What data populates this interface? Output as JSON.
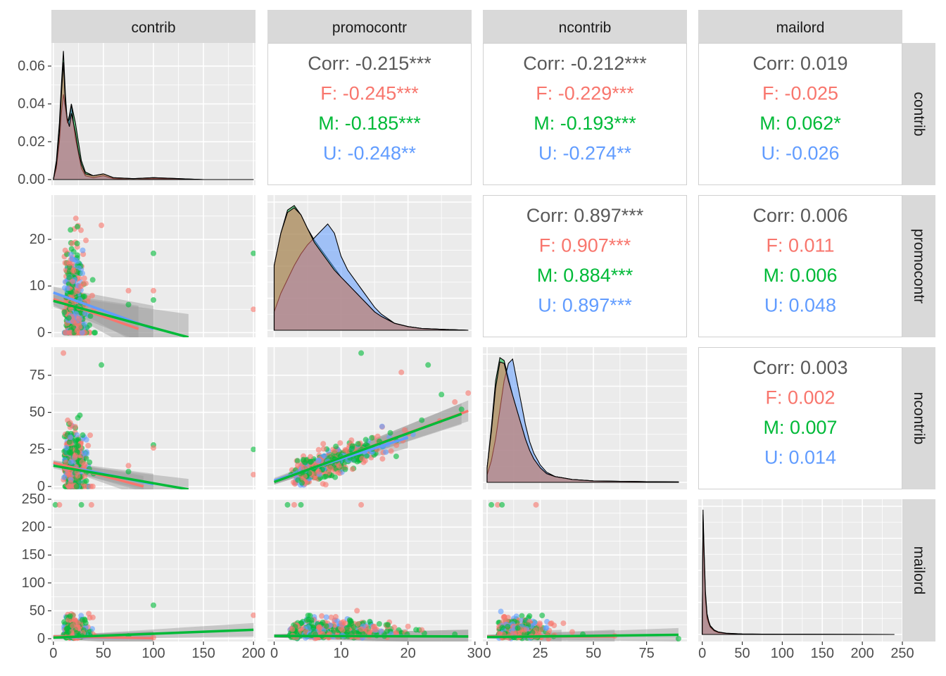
{
  "chart_data": {
    "type": "scatter",
    "variables": [
      "contrib",
      "promocontr",
      "ncontrib",
      "mailord"
    ],
    "groups": [
      {
        "key": "F",
        "color": "#F8766D"
      },
      {
        "key": "M",
        "color": "#00BA38"
      },
      {
        "key": "U",
        "color": "#619CFF"
      }
    ],
    "overall_color": "#595959",
    "panel_background": "#EBEBEB",
    "strip_background": "#D9D9D9",
    "axes": {
      "contrib": {
        "lim": [
          -2,
          202
        ],
        "ticks": [
          0,
          50,
          100,
          150,
          200
        ]
      },
      "promocontr": {
        "lim": [
          -1,
          29.5
        ],
        "ticks": [
          0,
          10,
          20,
          30
        ]
      },
      "ncontrib": {
        "lim": [
          -2,
          94
        ],
        "ticks": [
          0,
          25,
          50,
          75
        ]
      },
      "mailord": {
        "lim": [
          -5,
          250
        ],
        "ticks": [
          0,
          50,
          100,
          150,
          200,
          250
        ]
      }
    },
    "density_ylim": [
      0,
      0.07
    ],
    "density_yticks": [
      "0.00",
      "0.02",
      "0.04",
      "0.06"
    ],
    "correlations": [
      {
        "row": "contrib",
        "col": "promocontr",
        "lines": [
          "Corr: -0.215***",
          "F: -0.245***",
          "M: -0.185***",
          "U: -0.248**"
        ]
      },
      {
        "row": "contrib",
        "col": "ncontrib",
        "lines": [
          "Corr: -0.212***",
          "F: -0.229***",
          "M: -0.193***",
          "U: -0.274**"
        ]
      },
      {
        "row": "contrib",
        "col": "mailord",
        "lines": [
          "Corr: 0.019",
          "F: -0.025",
          "M: 0.062*",
          "U: -0.026"
        ]
      },
      {
        "row": "promocontr",
        "col": "ncontrib",
        "lines": [
          "Corr: 0.897***",
          "F: 0.907***",
          "M: 0.884***",
          "U: 0.897***"
        ]
      },
      {
        "row": "promocontr",
        "col": "mailord",
        "lines": [
          "Corr: 0.006",
          "F: 0.011",
          "M: 0.006",
          "U: 0.048"
        ]
      },
      {
        "row": "ncontrib",
        "col": "mailord",
        "lines": [
          "Corr: 0.003",
          "F: 0.002",
          "M: 0.007",
          "U: 0.014"
        ]
      }
    ],
    "densities": {
      "contrib": {
        "x": [
          0,
          3,
          6,
          8,
          10,
          12,
          14,
          16,
          18,
          20,
          22,
          25,
          28,
          32,
          40,
          50,
          60,
          80,
          100,
          150,
          200
        ],
        "F": [
          0,
          0.008,
          0.025,
          0.045,
          0.062,
          0.04,
          0.032,
          0.028,
          0.035,
          0.03,
          0.025,
          0.015,
          0.008,
          0.003,
          0.002,
          0.003,
          0.001,
          0.0005,
          0.001,
          0,
          0
        ],
        "M": [
          0,
          0.01,
          0.03,
          0.05,
          0.068,
          0.045,
          0.03,
          0.034,
          0.04,
          0.035,
          0.03,
          0.02,
          0.01,
          0.004,
          0.002,
          0.003,
          0.001,
          0.0005,
          0.001,
          0,
          0
        ],
        "U": [
          0,
          0.006,
          0.02,
          0.035,
          0.045,
          0.038,
          0.03,
          0.032,
          0.04,
          0.03,
          0.022,
          0.014,
          0.006,
          0.002,
          0.001,
          0.002,
          0.0005,
          0,
          0.0005,
          0,
          0
        ]
      },
      "promocontr": {
        "x": [
          0,
          1,
          2,
          3,
          4,
          5,
          6,
          7,
          8,
          9,
          10,
          11,
          12,
          13,
          14,
          15,
          16,
          18,
          20,
          22,
          25,
          29
        ],
        "F": [
          0.14,
          0.21,
          0.255,
          0.265,
          0.25,
          0.22,
          0.19,
          0.17,
          0.15,
          0.13,
          0.115,
          0.1,
          0.085,
          0.07,
          0.055,
          0.04,
          0.03,
          0.015,
          0.008,
          0.004,
          0.002,
          0
        ],
        "M": [
          0.14,
          0.21,
          0.26,
          0.27,
          0.25,
          0.22,
          0.195,
          0.175,
          0.155,
          0.135,
          0.115,
          0.1,
          0.085,
          0.07,
          0.055,
          0.04,
          0.03,
          0.015,
          0.008,
          0.004,
          0.002,
          0
        ],
        "U": [
          0.04,
          0.08,
          0.11,
          0.14,
          0.165,
          0.185,
          0.2,
          0.215,
          0.23,
          0.21,
          0.16,
          0.13,
          0.11,
          0.09,
          0.07,
          0.05,
          0.035,
          0.015,
          0.008,
          0.004,
          0.002,
          0
        ]
      },
      "ncontrib": {
        "x": [
          0,
          2,
          4,
          6,
          8,
          10,
          12,
          14,
          16,
          18,
          20,
          22,
          25,
          28,
          32,
          36,
          40,
          50,
          60,
          75,
          90
        ],
        "F": [
          0.01,
          0.035,
          0.065,
          0.083,
          0.082,
          0.07,
          0.06,
          0.05,
          0.04,
          0.03,
          0.022,
          0.016,
          0.01,
          0.006,
          0.004,
          0.003,
          0.002,
          0.001,
          0.0008,
          0.0005,
          0.0003
        ],
        "M": [
          0.01,
          0.038,
          0.07,
          0.086,
          0.084,
          0.072,
          0.06,
          0.05,
          0.04,
          0.03,
          0.022,
          0.016,
          0.01,
          0.006,
          0.004,
          0.003,
          0.002,
          0.001,
          0.0008,
          0.0005,
          0.0003
        ],
        "U": [
          0.005,
          0.015,
          0.03,
          0.05,
          0.07,
          0.082,
          0.085,
          0.07,
          0.055,
          0.04,
          0.028,
          0.02,
          0.012,
          0.007,
          0.004,
          0.003,
          0.002,
          0.001,
          0.0008,
          0.0005,
          0.0003
        ]
      },
      "mailord": {
        "x": [
          0,
          1,
          2,
          4,
          6,
          8,
          10,
          15,
          20,
          30,
          50,
          100,
          240
        ],
        "F": [
          0.05,
          0.75,
          0.55,
          0.25,
          0.12,
          0.08,
          0.05,
          0.025,
          0.015,
          0.007,
          0.003,
          0.001,
          0
        ],
        "M": [
          0.05,
          0.78,
          0.58,
          0.27,
          0.13,
          0.085,
          0.055,
          0.028,
          0.016,
          0.008,
          0.003,
          0.001,
          0
        ],
        "U": [
          0.05,
          0.7,
          0.5,
          0.22,
          0.1,
          0.07,
          0.045,
          0.022,
          0.012,
          0.006,
          0.002,
          0.001,
          0
        ]
      }
    },
    "smooth_lines": [
      {
        "x": "contrib",
        "y": "promocontr",
        "F": [
          [
            0,
            7.2
          ],
          [
            85,
            0.8
          ]
        ],
        "M": [
          [
            0,
            6.8
          ],
          [
            135,
            -1
          ]
        ],
        "U": [
          [
            0,
            8.6
          ],
          [
            100,
            0.8
          ]
        ]
      },
      {
        "x": "contrib",
        "y": "ncontrib",
        "F": [
          [
            0,
            16
          ],
          [
            90,
            0
          ]
        ],
        "M": [
          [
            0,
            14
          ],
          [
            135,
            -2
          ]
        ],
        "U": [
          [
            0,
            15.5
          ],
          [
            100,
            1.5
          ]
        ]
      },
      {
        "x": "contrib",
        "y": "mailord",
        "F": [
          [
            0,
            4
          ],
          [
            100,
            1
          ]
        ],
        "M": [
          [
            0,
            2
          ],
          [
            200,
            16
          ]
        ],
        "U": [
          [
            0,
            3
          ],
          [
            100,
            1
          ]
        ]
      },
      {
        "x": "promocontr",
        "y": "ncontrib",
        "F": [
          [
            0,
            3
          ],
          [
            29,
            51
          ]
        ],
        "M": [
          [
            0,
            3
          ],
          [
            28,
            49
          ]
        ],
        "U": [
          [
            0,
            4
          ],
          [
            20,
            33
          ]
        ]
      },
      {
        "x": "promocontr",
        "y": "mailord",
        "F": [
          [
            0,
            5
          ],
          [
            29,
            4
          ]
        ],
        "M": [
          [
            0,
            5
          ],
          [
            29,
            4
          ]
        ],
        "U": [
          [
            0,
            5
          ],
          [
            20,
            5
          ]
        ]
      },
      {
        "x": "ncontrib",
        "y": "mailord",
        "F": [
          [
            0,
            4
          ],
          [
            60,
            4
          ]
        ],
        "M": [
          [
            0,
            3
          ],
          [
            90,
            7
          ]
        ],
        "U": [
          [
            0,
            4
          ],
          [
            35,
            4
          ]
        ]
      }
    ],
    "notable_points": {
      "contrib_promocontr": [
        [
          200,
          17
        ],
        [
          200,
          5
        ],
        [
          100,
          17
        ],
        [
          100,
          9
        ],
        [
          100,
          7
        ],
        [
          48,
          23
        ],
        [
          75,
          6
        ],
        [
          75,
          9
        ]
      ],
      "contrib_ncontrib": [
        [
          200,
          25
        ],
        [
          200,
          8
        ],
        [
          48,
          82
        ],
        [
          10,
          90
        ],
        [
          100,
          28
        ],
        [
          100,
          26
        ],
        [
          75,
          10
        ],
        [
          75,
          14
        ]
      ],
      "contrib_mailord": [
        [
          2,
          240
        ],
        [
          6,
          240
        ],
        [
          28,
          240
        ],
        [
          38,
          240
        ],
        [
          100,
          60
        ],
        [
          200,
          42
        ],
        [
          75,
          5
        ],
        [
          100,
          2
        ]
      ],
      "promocontr_ncontrib": [
        [
          13,
          90
        ],
        [
          29,
          63
        ],
        [
          23,
          82
        ],
        [
          19,
          77
        ],
        [
          25,
          62
        ],
        [
          27,
          57
        ],
        [
          28,
          52
        ]
      ],
      "promocontr_mailord": [
        [
          2,
          240
        ],
        [
          3,
          240
        ],
        [
          4,
          240
        ],
        [
          13,
          240
        ],
        [
          17,
          25
        ],
        [
          20,
          22
        ],
        [
          27,
          8
        ]
      ],
      "ncontrib_mailord": [
        [
          2,
          240
        ],
        [
          5,
          240
        ],
        [
          7,
          240
        ],
        [
          23,
          240
        ],
        [
          90,
          0
        ],
        [
          60,
          5
        ],
        [
          45,
          8
        ]
      ]
    }
  }
}
